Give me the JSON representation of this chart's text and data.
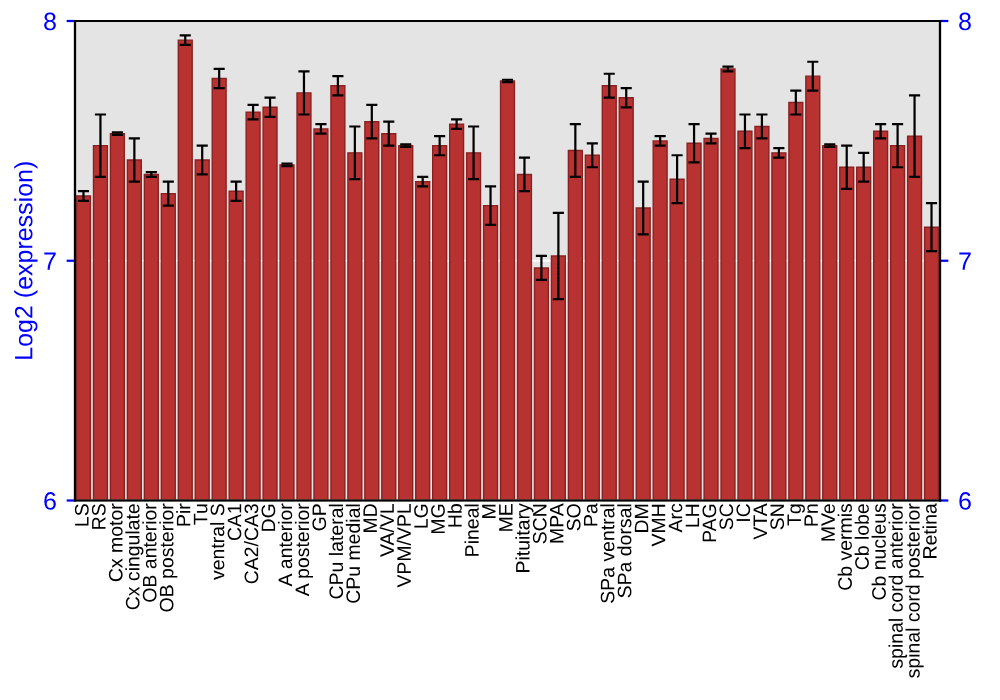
{
  "chart_data": {
    "type": "bar",
    "ylabel": "Log2 (expression)",
    "categories": [
      "LS",
      "RS",
      "Cx motor",
      "Cx cingulate",
      "OB anterior",
      "OB posterior",
      "Pir",
      "Tu",
      "ventral S",
      "CA1",
      "CA2/CA3",
      "DG",
      "A anterior",
      "A posterior",
      "GP",
      "CPu lateral",
      "CPu medial",
      "MD",
      "VA/VL",
      "VPM/VPL",
      "LG",
      "MG",
      "Hb",
      "Pineal",
      "M",
      "ME",
      "Pituitary",
      "SCN",
      "MPA",
      "SO",
      "Pa",
      "SPa ventral",
      "SPa dorsal",
      "DM",
      "VMH",
      "Arc",
      "LH",
      "PAG",
      "SC",
      "IC",
      "VTA",
      "SN",
      "Tg",
      "Pn",
      "MVe",
      "Cb vermis",
      "Cb lobe",
      "Cb nucleus",
      "spinal cord anterior",
      "spinal cord posterior",
      "Retina"
    ],
    "values": [
      7.27,
      7.48,
      7.53,
      7.42,
      7.36,
      7.28,
      7.92,
      7.42,
      7.76,
      7.29,
      7.62,
      7.64,
      7.4,
      7.7,
      7.55,
      7.73,
      7.45,
      7.58,
      7.53,
      7.48,
      7.33,
      7.48,
      7.57,
      7.45,
      7.23,
      7.75,
      7.36,
      6.97,
      7.02,
      7.46,
      7.44,
      7.73,
      7.68,
      7.22,
      7.5,
      7.34,
      7.49,
      7.51,
      7.8,
      7.54,
      7.56,
      7.45,
      7.66,
      7.77,
      7.48,
      7.39,
      7.39,
      7.54,
      7.48,
      7.52,
      7.14
    ],
    "errors": [
      0.02,
      0.13,
      0.005,
      0.09,
      0.01,
      0.05,
      0.02,
      0.06,
      0.04,
      0.04,
      0.03,
      0.04,
      0.005,
      0.09,
      0.02,
      0.04,
      0.11,
      0.07,
      0.05,
      0.005,
      0.02,
      0.04,
      0.02,
      0.11,
      0.08,
      0.005,
      0.07,
      0.05,
      0.18,
      0.11,
      0.05,
      0.05,
      0.04,
      0.11,
      0.02,
      0.1,
      0.08,
      0.02,
      0.01,
      0.07,
      0.05,
      0.02,
      0.05,
      0.06,
      0.005,
      0.09,
      0.06,
      0.03,
      0.09,
      0.17,
      0.1
    ],
    "color": "#b83232",
    "ylim": [
      6,
      8
    ],
    "yticks": [
      6,
      7,
      8
    ],
    "y2lim": [
      6,
      8
    ],
    "y2ticks": [
      6,
      7,
      8
    ],
    "ref_lines": [
      {
        "axis": "y",
        "value": 7,
        "color": "#ffffff"
      }
    ]
  }
}
